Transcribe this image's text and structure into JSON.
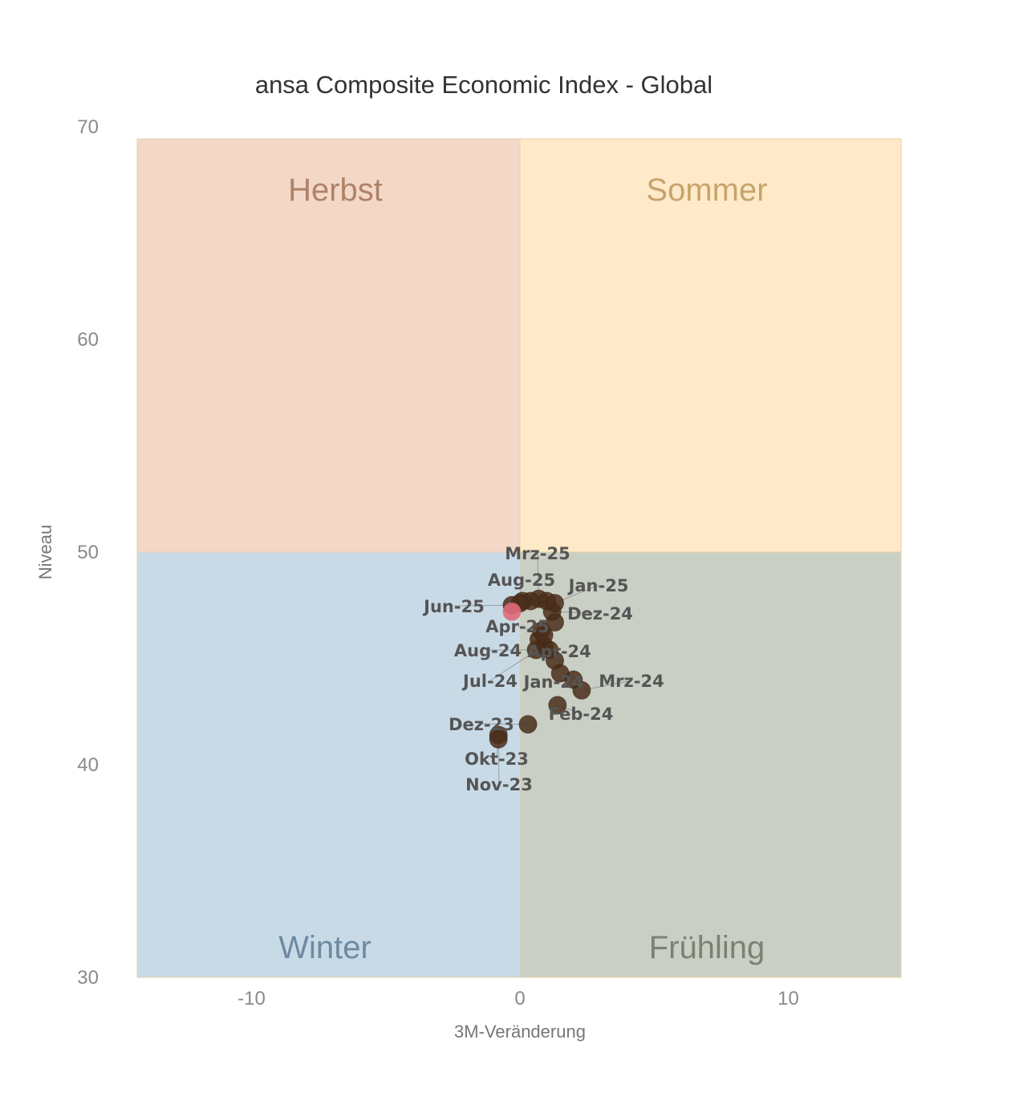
{
  "chart_data": {
    "type": "scatter",
    "title": "ansa Composite Economic Index - Global",
    "xlabel": "3M-Veränderung",
    "ylabel": "Niveau",
    "xlim": [
      -14.3,
      14.3
    ],
    "ylim": [
      30,
      69.5
    ],
    "xticks": [
      -10,
      0,
      10
    ],
    "yticks": [
      30,
      40,
      50,
      60,
      70
    ],
    "grid": false,
    "quadrants": [
      {
        "name": "Herbst",
        "color": "#f3d8c8",
        "text_color": "#b08267"
      },
      {
        "name": "Sommer",
        "color": "#feeac8",
        "text_color": "#c7a36c"
      },
      {
        "name": "Winter",
        "color": "#c9dae7",
        "text_color": "#6e8aa2"
      },
      {
        "name": "Frühling",
        "color": "#c9cfc4",
        "text_color": "#7a8272"
      }
    ],
    "point_color": "#4a2e1a",
    "latest_color": "#e06a7a",
    "points": [
      {
        "label": "Okt-23",
        "x": -0.8,
        "y": 41.4
      },
      {
        "label": "Nov-23",
        "x": -0.8,
        "y": 41.2
      },
      {
        "label": "Dez-23",
        "x": 0.3,
        "y": 41.9
      },
      {
        "label": "Jan-24",
        "x": 2.0,
        "y": 44.0
      },
      {
        "label": "Feb-24",
        "x": 1.4,
        "y": 42.8
      },
      {
        "label": "Mrz-24",
        "x": 2.3,
        "y": 43.5
      },
      {
        "label": "Apr-24",
        "x": 1.1,
        "y": 45.4
      },
      {
        "label": "",
        "x": 1.3,
        "y": 44.9
      },
      {
        "label": "",
        "x": 1.5,
        "y": 44.3
      },
      {
        "label": "Jul-24",
        "x": 0.9,
        "y": 45.6
      },
      {
        "label": "Aug-24",
        "x": 0.6,
        "y": 45.4
      },
      {
        "label": "",
        "x": 0.7,
        "y": 45.9
      },
      {
        "label": "",
        "x": 0.8,
        "y": 46.3
      },
      {
        "label": "",
        "x": 1.3,
        "y": 46.7
      },
      {
        "label": "Dez-24",
        "x": 1.2,
        "y": 47.2
      },
      {
        "label": "Jan-25",
        "x": 1.3,
        "y": 47.6
      },
      {
        "label": "",
        "x": 1.0,
        "y": 47.7
      },
      {
        "label": "Mrz-25",
        "x": 0.7,
        "y": 47.8
      },
      {
        "label": "Apr-25",
        "x": 0.9,
        "y": 46.1
      },
      {
        "label": "",
        "x": 0.4,
        "y": 47.7
      },
      {
        "label": "Jun-25",
        "x": -0.3,
        "y": 47.5
      },
      {
        "label": "",
        "x": 0.1,
        "y": 47.7
      },
      {
        "label": "Aug-25",
        "x": 0.0,
        "y": 47.6
      },
      {
        "label": "",
        "x": -0.3,
        "y": 47.2,
        "latest": true
      }
    ]
  }
}
